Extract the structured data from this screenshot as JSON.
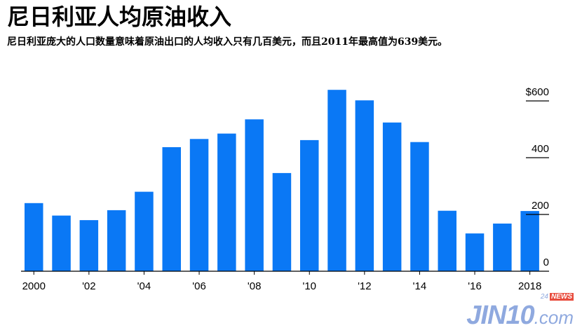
{
  "title": "尼日利亚人均原油收入",
  "subtitle": "尼日利亚庞大的人口数量意味着原油出口的人均收入只有几百美元，而且2011年最高值为639美元。",
  "colors": {
    "bar": "#0a78f5",
    "axis": "#000000"
  },
  "chart_data": {
    "type": "bar",
    "title": "尼日利亚人均原油收入",
    "xlabel": "",
    "ylabel": "",
    "ylim": [
      0,
      640
    ],
    "grid": false,
    "categories": [
      "2000",
      "2001",
      "2002",
      "2003",
      "2004",
      "2005",
      "2006",
      "2007",
      "2008",
      "2009",
      "2010",
      "2011",
      "2012",
      "2013",
      "2014",
      "2015",
      "2016",
      "2017",
      "2018"
    ],
    "values": [
      240,
      196,
      180,
      215,
      280,
      437,
      466,
      485,
      535,
      346,
      462,
      639,
      602,
      524,
      455,
      213,
      133,
      168,
      212
    ],
    "x_tick_labels": [
      {
        "category": "2000",
        "label": "2000"
      },
      {
        "category": "2002",
        "label": "'02"
      },
      {
        "category": "2004",
        "label": "'04"
      },
      {
        "category": "2006",
        "label": "'06"
      },
      {
        "category": "2008",
        "label": "'08"
      },
      {
        "category": "2010",
        "label": "'10"
      },
      {
        "category": "2012",
        "label": "'12"
      },
      {
        "category": "2014",
        "label": "'14"
      },
      {
        "category": "2016",
        "label": "'16"
      },
      {
        "category": "2018",
        "label": "2018"
      }
    ],
    "y_ticks": [
      {
        "value": 600,
        "label": "$600"
      },
      {
        "value": 400,
        "label": "400"
      },
      {
        "value": 200,
        "label": "200"
      },
      {
        "value": 0,
        "label": "0"
      }
    ]
  },
  "watermark": {
    "main": "JIN10",
    "suffix": ".com",
    "tag_num": "24",
    "tag_news": "NEWS"
  }
}
